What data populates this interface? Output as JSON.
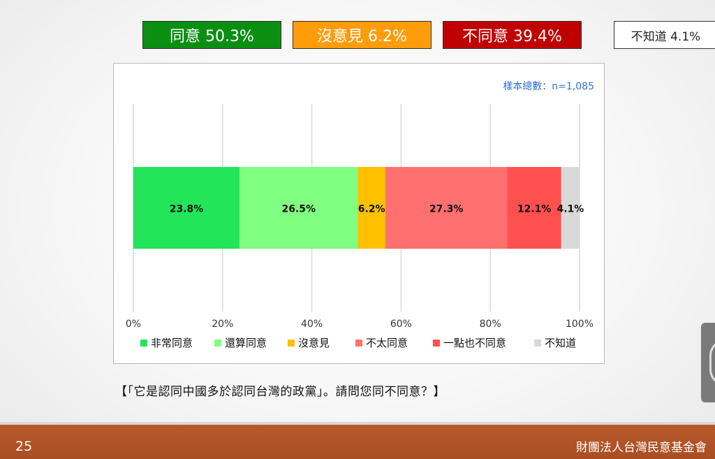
{
  "summary": {
    "agree": "同意 50.3%",
    "neutral": "沒意見 6.2%",
    "disagree": "不同意 39.4%",
    "unknown": "不知道 4.1%"
  },
  "sample_size_label": "樣本總數：n=1,085",
  "question": "【「它是認同中國多於認同台灣的政黨」。請問您同不同意？】",
  "footer": {
    "page_number": "25",
    "org_name": "財團法人台灣民意基金會"
  },
  "chart_data": {
    "type": "bar",
    "orientation": "horizontal-stacked",
    "xlim": [
      0,
      100
    ],
    "x_ticks": [
      "0%",
      "20%",
      "40%",
      "60%",
      "80%",
      "100%"
    ],
    "grid": true,
    "legend_position": "bottom",
    "series": [
      {
        "name": "非常同意",
        "value": 23.8,
        "label": "23.8%",
        "color": "#22e55a"
      },
      {
        "name": "還算同意",
        "value": 26.5,
        "label": "26.5%",
        "color": "#80ff80"
      },
      {
        "name": "沒意見",
        "value": 6.2,
        "label": "6.2%",
        "color": "#ffc000"
      },
      {
        "name": "不太同意",
        "value": 27.3,
        "label": "27.3%",
        "color": "#ff7070"
      },
      {
        "name": "一點也不同意",
        "value": 12.1,
        "label": "12.1%",
        "color": "#ff5050"
      },
      {
        "name": "不知道",
        "value": 4.1,
        "label": "4.1%",
        "color": "#d9d9d9"
      }
    ]
  }
}
